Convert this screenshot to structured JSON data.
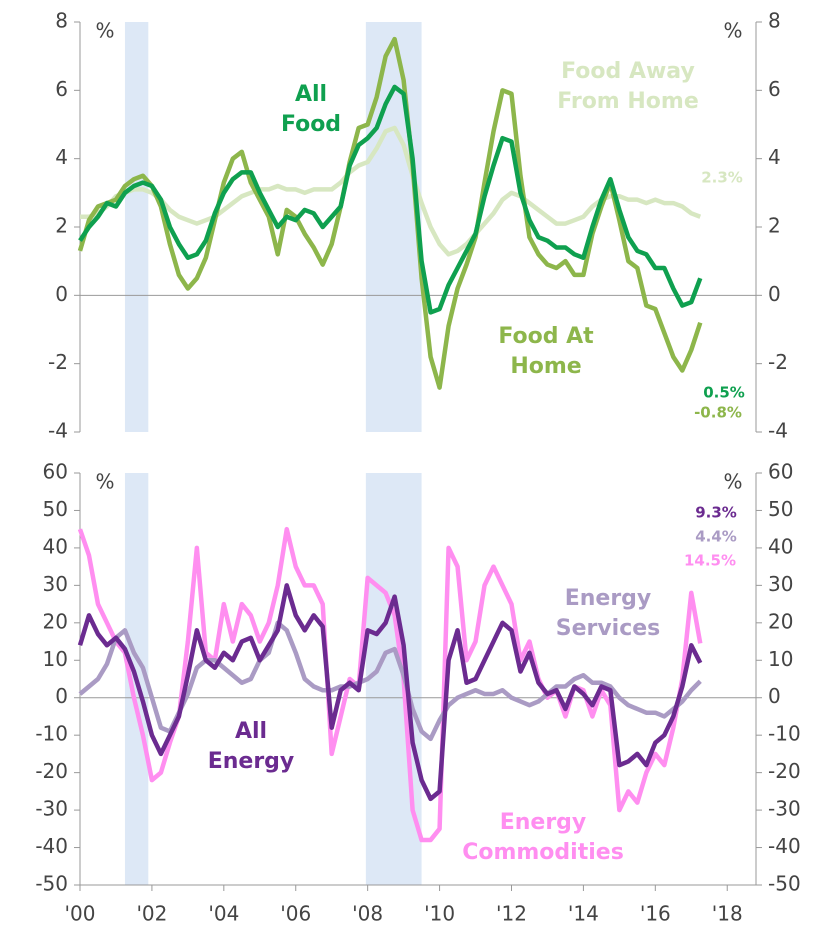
{
  "chart_data": [
    {
      "type": "line",
      "unit": "%",
      "xlim": [
        2000,
        2018.8
      ],
      "ylim": [
        -4,
        8
      ],
      "yticks": [
        -4,
        -2,
        0,
        2,
        4,
        6,
        8
      ],
      "shaded": [
        [
          2001.25,
          2001.9
        ],
        [
          2007.95,
          2009.5
        ]
      ],
      "x": [
        2000,
        2000.25,
        2000.5,
        2000.75,
        2001,
        2001.25,
        2001.5,
        2001.75,
        2002,
        2002.25,
        2002.5,
        2002.75,
        2003,
        2003.25,
        2003.5,
        2003.75,
        2004,
        2004.25,
        2004.5,
        2004.75,
        2005,
        2005.25,
        2005.5,
        2005.75,
        2006,
        2006.25,
        2006.5,
        2006.75,
        2007,
        2007.25,
        2007.5,
        2007.75,
        2008,
        2008.25,
        2008.5,
        2008.75,
        2009,
        2009.25,
        2009.5,
        2009.75,
        2010,
        2010.25,
        2010.5,
        2010.75,
        2011,
        2011.25,
        2011.5,
        2011.75,
        2012,
        2012.25,
        2012.5,
        2012.75,
        2013,
        2013.25,
        2013.5,
        2013.75,
        2014,
        2014.25,
        2014.5,
        2014.75,
        2015,
        2015.25,
        2015.5,
        2015.75,
        2016,
        2016.25,
        2016.5,
        2016.75,
        2017,
        2017.25
      ],
      "series": [
        {
          "name": "Food Away From Home",
          "color": "#d7e7c1",
          "values": [
            2.3,
            2.3,
            2.4,
            2.6,
            2.9,
            3.0,
            3.1,
            3.1,
            3.0,
            2.8,
            2.5,
            2.3,
            2.2,
            2.1,
            2.2,
            2.3,
            2.5,
            2.7,
            2.9,
            3.0,
            3.1,
            3.1,
            3.2,
            3.1,
            3.1,
            3.0,
            3.1,
            3.1,
            3.1,
            3.3,
            3.6,
            3.8,
            3.9,
            4.3,
            4.8,
            4.9,
            4.4,
            3.5,
            2.7,
            2.0,
            1.5,
            1.2,
            1.3,
            1.5,
            1.8,
            2.1,
            2.4,
            2.8,
            3.0,
            2.9,
            2.7,
            2.5,
            2.3,
            2.1,
            2.1,
            2.2,
            2.3,
            2.6,
            2.8,
            2.9,
            2.9,
            2.8,
            2.8,
            2.7,
            2.8,
            2.7,
            2.7,
            2.6,
            2.4,
            2.3
          ],
          "value_labels": [
            null,
            null,
            null,
            null,
            null,
            null,
            null,
            null,
            null,
            null,
            null,
            null,
            null,
            null,
            null,
            null,
            null,
            null,
            null,
            null,
            null,
            null,
            null,
            null,
            null,
            null,
            null,
            null,
            null,
            null,
            null,
            null,
            null,
            null,
            null,
            null,
            null,
            null,
            null,
            null,
            null,
            null,
            null,
            null,
            null,
            null,
            null,
            null,
            null,
            null,
            null,
            null,
            null,
            null,
            null,
            null,
            null,
            null,
            null,
            null,
            null,
            null,
            null,
            null,
            null,
            null,
            null,
            null,
            null,
            "2.3%"
          ]
        },
        {
          "name": "Food At Home",
          "color": "#8db64b",
          "values": [
            1.3,
            2.2,
            2.6,
            2.7,
            2.8,
            3.2,
            3.4,
            3.5,
            3.2,
            2.6,
            1.5,
            0.6,
            0.2,
            0.5,
            1.1,
            2.2,
            3.3,
            4.0,
            4.2,
            3.3,
            2.8,
            2.3,
            1.2,
            2.5,
            2.3,
            1.8,
            1.4,
            0.9,
            1.5,
            2.6,
            3.9,
            4.9,
            5.0,
            5.8,
            7.0,
            7.5,
            6.3,
            3.8,
            0.5,
            -1.8,
            -2.7,
            -0.9,
            0.2,
            0.9,
            1.7,
            3.3,
            4.8,
            6.0,
            5.9,
            3.5,
            1.7,
            1.2,
            0.9,
            0.8,
            1.0,
            0.6,
            0.6,
            1.8,
            2.6,
            3.3,
            2.2,
            1.0,
            0.8,
            -0.3,
            -0.4,
            -1.1,
            -1.8,
            -2.2,
            -1.6,
            -0.8
          ],
          "value_labels": [
            null,
            null,
            null,
            null,
            null,
            null,
            null,
            null,
            null,
            null,
            null,
            null,
            null,
            null,
            null,
            null,
            null,
            null,
            null,
            null,
            null,
            null,
            null,
            null,
            null,
            null,
            null,
            null,
            null,
            null,
            null,
            null,
            null,
            null,
            null,
            null,
            null,
            null,
            null,
            null,
            null,
            null,
            null,
            null,
            null,
            null,
            null,
            null,
            null,
            null,
            null,
            null,
            null,
            null,
            null,
            null,
            null,
            null,
            null,
            null,
            null,
            null,
            null,
            null,
            null,
            null,
            null,
            null,
            null,
            "-0.8%"
          ]
        },
        {
          "name": "All Food",
          "color": "#0fa04f",
          "values": [
            1.6,
            2.0,
            2.3,
            2.7,
            2.6,
            3.0,
            3.2,
            3.3,
            3.2,
            2.8,
            2.0,
            1.5,
            1.1,
            1.2,
            1.6,
            2.4,
            3.0,
            3.4,
            3.6,
            3.6,
            3.0,
            2.5,
            2.0,
            2.3,
            2.2,
            2.5,
            2.4,
            2.0,
            2.3,
            2.6,
            3.8,
            4.4,
            4.6,
            4.9,
            5.6,
            6.1,
            5.9,
            4.0,
            1.0,
            -0.5,
            -0.4,
            0.3,
            0.8,
            1.3,
            1.8,
            2.9,
            3.8,
            4.6,
            4.5,
            3.0,
            2.2,
            1.7,
            1.6,
            1.4,
            1.4,
            1.2,
            1.1,
            2.0,
            2.8,
            3.4,
            2.5,
            1.7,
            1.3,
            1.2,
            0.8,
            0.8,
            0.2,
            -0.3,
            -0.2,
            0.5
          ],
          "value_labels": [
            null,
            null,
            null,
            null,
            null,
            null,
            null,
            null,
            null,
            null,
            null,
            null,
            null,
            null,
            null,
            null,
            null,
            null,
            null,
            null,
            null,
            null,
            null,
            null,
            null,
            null,
            null,
            null,
            null,
            null,
            null,
            null,
            null,
            null,
            null,
            null,
            null,
            null,
            null,
            null,
            null,
            null,
            null,
            null,
            null,
            null,
            null,
            null,
            null,
            null,
            null,
            null,
            null,
            null,
            null,
            null,
            null,
            null,
            null,
            null,
            null,
            null,
            null,
            null,
            null,
            null,
            null,
            null,
            null,
            "0.5%"
          ]
        }
      ]
    },
    {
      "type": "line",
      "unit": "%",
      "xlim": [
        2000,
        2018.8
      ],
      "ylim": [
        -50,
        60
      ],
      "yticks": [
        -50,
        -40,
        -30,
        -20,
        -10,
        0,
        10,
        20,
        30,
        40,
        50,
        60
      ],
      "xticks": [
        {
          "value": 2000,
          "label": "'00"
        },
        {
          "value": 2002,
          "label": "'02"
        },
        {
          "value": 2004,
          "label": "'04"
        },
        {
          "value": 2006,
          "label": "'06"
        },
        {
          "value": 2008,
          "label": "'08"
        },
        {
          "value": 2010,
          "label": "'10"
        },
        {
          "value": 2012,
          "label": "'12"
        },
        {
          "value": 2014,
          "label": "'14"
        },
        {
          "value": 2016,
          "label": "'16"
        },
        {
          "value": 2018,
          "label": "'18"
        }
      ],
      "shaded": [
        [
          2001.25,
          2001.9
        ],
        [
          2007.95,
          2009.5
        ]
      ],
      "x": [
        2000,
        2000.25,
        2000.5,
        2000.75,
        2001,
        2001.25,
        2001.5,
        2001.75,
        2002,
        2002.25,
        2002.5,
        2002.75,
        2003,
        2003.25,
        2003.5,
        2003.75,
        2004,
        2004.25,
        2004.5,
        2004.75,
        2005,
        2005.25,
        2005.5,
        2005.75,
        2006,
        2006.25,
        2006.5,
        2006.75,
        2007,
        2007.25,
        2007.5,
        2007.75,
        2008,
        2008.25,
        2008.5,
        2008.75,
        2009,
        2009.25,
        2009.5,
        2009.75,
        2010,
        2010.25,
        2010.5,
        2010.75,
        2011,
        2011.25,
        2011.5,
        2011.75,
        2012,
        2012.25,
        2012.5,
        2012.75,
        2013,
        2013.25,
        2013.5,
        2013.75,
        2014,
        2014.25,
        2014.5,
        2014.75,
        2015,
        2015.25,
        2015.5,
        2015.75,
        2016,
        2016.25,
        2016.5,
        2016.75,
        2017,
        2017.25
      ],
      "series": [
        {
          "name": "Energy Commodities",
          "color": "#ff8ef0",
          "values": [
            45,
            38,
            25,
            20,
            15,
            12,
            0,
            -10,
            -22,
            -20,
            -12,
            -5,
            15,
            40,
            12,
            10,
            25,
            15,
            25,
            22,
            15,
            20,
            30,
            45,
            35,
            30,
            30,
            25,
            -15,
            -5,
            5,
            3,
            32,
            30,
            28,
            22,
            5,
            -30,
            -38,
            -38,
            -35,
            40,
            35,
            10,
            15,
            30,
            35,
            30,
            25,
            10,
            15,
            5,
            0,
            2,
            -5,
            3,
            2,
            -5,
            2,
            -2,
            -30,
            -25,
            -28,
            -20,
            -15,
            -18,
            -8,
            5,
            28,
            14.5
          ],
          "value_labels": [
            null,
            null,
            null,
            null,
            null,
            null,
            null,
            null,
            null,
            null,
            null,
            null,
            null,
            null,
            null,
            null,
            null,
            null,
            null,
            null,
            null,
            null,
            null,
            null,
            null,
            null,
            null,
            null,
            null,
            null,
            null,
            null,
            null,
            null,
            null,
            null,
            null,
            null,
            null,
            null,
            null,
            null,
            null,
            null,
            null,
            null,
            null,
            null,
            null,
            null,
            null,
            null,
            null,
            null,
            null,
            null,
            null,
            null,
            null,
            null,
            null,
            null,
            null,
            null,
            null,
            null,
            null,
            null,
            null,
            "14.5%"
          ]
        },
        {
          "name": "Energy Services",
          "color": "#aa9bc4",
          "values": [
            1,
            3,
            5,
            9,
            16,
            18,
            12,
            8,
            0,
            -8,
            -9,
            -4,
            1,
            8,
            10,
            10,
            8,
            6,
            4,
            5,
            10,
            12,
            20,
            18,
            12,
            5,
            3,
            2,
            2,
            3,
            3,
            4,
            5,
            7,
            12,
            13,
            6,
            -3,
            -9,
            -11,
            -6,
            -2,
            0,
            1,
            2,
            1,
            1,
            2,
            0,
            -1,
            -2,
            -1,
            1,
            3,
            3,
            5,
            6,
            4,
            4,
            3,
            0,
            -2,
            -3,
            -4,
            -4,
            -5,
            -3,
            -1,
            2,
            4.4
          ],
          "value_labels": [
            null,
            null,
            null,
            null,
            null,
            null,
            null,
            null,
            null,
            null,
            null,
            null,
            null,
            null,
            null,
            null,
            null,
            null,
            null,
            null,
            null,
            null,
            null,
            null,
            null,
            null,
            null,
            null,
            null,
            null,
            null,
            null,
            null,
            null,
            null,
            null,
            null,
            null,
            null,
            null,
            null,
            null,
            null,
            null,
            null,
            null,
            null,
            null,
            null,
            null,
            null,
            null,
            null,
            null,
            null,
            null,
            null,
            null,
            null,
            null,
            null,
            null,
            null,
            null,
            null,
            null,
            null,
            null,
            null,
            "4.4%"
          ]
        },
        {
          "name": "All Energy",
          "color": "#6b2b90",
          "values": [
            14,
            22,
            17,
            14,
            16,
            13,
            7,
            -1,
            -10,
            -15,
            -10,
            -5,
            6,
            18,
            10,
            8,
            12,
            10,
            15,
            16,
            10,
            14,
            18,
            30,
            22,
            18,
            22,
            19,
            -8,
            2,
            4,
            2,
            18,
            17,
            20,
            27,
            14,
            -12,
            -22,
            -27,
            -25,
            10,
            18,
            4,
            5,
            10,
            15,
            20,
            18,
            7,
            12,
            4,
            1,
            2,
            -3,
            3,
            1,
            -2,
            3,
            2,
            -18,
            -17,
            -15,
            -18,
            -12,
            -10,
            -5,
            3,
            14,
            9.3
          ],
          "value_labels": [
            null,
            null,
            null,
            null,
            null,
            null,
            null,
            null,
            null,
            null,
            null,
            null,
            null,
            null,
            null,
            null,
            null,
            null,
            null,
            null,
            null,
            null,
            null,
            null,
            null,
            null,
            null,
            null,
            null,
            null,
            null,
            null,
            null,
            null,
            null,
            null,
            null,
            null,
            null,
            null,
            null,
            null,
            null,
            null,
            null,
            null,
            null,
            null,
            null,
            null,
            null,
            null,
            null,
            null,
            null,
            null,
            null,
            null,
            null,
            null,
            null,
            null,
            null,
            null,
            null,
            null,
            null,
            null,
            null,
            "9.3%"
          ]
        }
      ]
    }
  ]
}
